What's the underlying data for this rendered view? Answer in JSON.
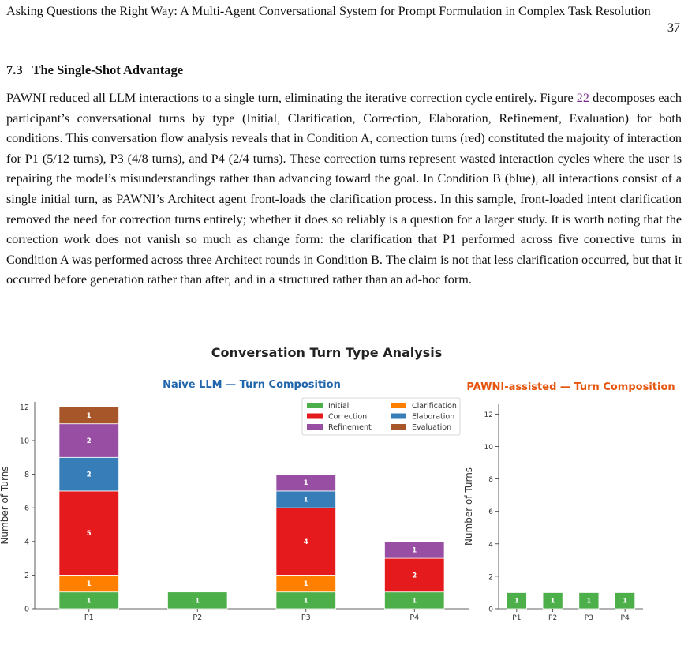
{
  "header": {
    "title": "Asking Questions the Right Way: A Multi-Agent Conversational System for Prompt Formulation in Complex Task Resolution",
    "page_number": "37"
  },
  "section": {
    "number": "7.3",
    "title": "The Single-Shot Advantage"
  },
  "paragraph": {
    "part1": "PAWNI reduced all LLM interactions to a single turn, eliminating the iterative correction cycle entirely. Figure ",
    "figure_ref": "22",
    "part2": " decomposes each participant’s conversational turns by type (Initial, Clarification, Correction, Elaboration, Refinement, Evaluation) for both conditions. This conversation flow analysis reveals that in Condition A, correction turns (red) constituted the majority of interaction for P1 (5/12 turns), P3 (4/8 turns), and P4 (2/4 turns). These correction turns represent wasted interaction cycles where the user is repairing the model’s misunderstandings rather than advancing toward the goal. In Condition B (blue), all interactions consist of a single initial turn, as PAWNI’s Architect agent front-loads the clarification process. In this sample, front-loaded intent clarification removed the need for correction turns entirely; whether it does so reliably is a question for a larger study. It is worth noting that the correction work does not vanish so much as change form: the clarification that P1 performed across five corrective turns in Condition A was performed across three Architect rounds in Condition B. The claim is not that less clarification occurred, but that it occurred before generation rather than after, and in a structured rather than an ad-hoc form."
  },
  "figure": {
    "suptitle": "Conversation Turn Type Analysis"
  },
  "colors": {
    "Initial": "#4daf4a",
    "Clarification": "#ff7f00",
    "Correction": "#e41a1c",
    "Elaboration": "#377eb8",
    "Refinement": "#984ea3",
    "Evaluation": "#a65628",
    "title_left": "#2166ac",
    "title_right": "#e6550d"
  },
  "chart_data": [
    {
      "type": "bar",
      "stacked": true,
      "title": "Naive LLM — Turn Composition",
      "ylabel": "Number of Turns",
      "xlabel": "",
      "categories": [
        "P1",
        "P2",
        "P3",
        "P4"
      ],
      "ylim": [
        0,
        12.3
      ],
      "yticks": [
        0,
        2,
        4,
        6,
        8,
        10,
        12
      ],
      "legend": "upper-right",
      "series": [
        {
          "name": "Initial",
          "values": [
            1,
            1,
            1,
            1
          ]
        },
        {
          "name": "Clarification",
          "values": [
            1,
            0,
            1,
            0
          ]
        },
        {
          "name": "Correction",
          "values": [
            5,
            0,
            4,
            2
          ]
        },
        {
          "name": "Elaboration",
          "values": [
            2,
            0,
            1,
            0
          ]
        },
        {
          "name": "Refinement",
          "values": [
            2,
            0,
            1,
            1
          ]
        },
        {
          "name": "Evaluation",
          "values": [
            1,
            0,
            0,
            0
          ]
        }
      ]
    },
    {
      "type": "bar",
      "stacked": true,
      "title": "PAWNI-assisted — Turn Composition",
      "ylabel": "Number of Turns",
      "xlabel": "",
      "categories": [
        "P1",
        "P2",
        "P3",
        "P4"
      ],
      "ylim": [
        0,
        12.6
      ],
      "yticks": [
        0,
        2,
        4,
        6,
        8,
        10,
        12
      ],
      "series": [
        {
          "name": "Initial",
          "values": [
            1,
            1,
            1,
            1
          ]
        }
      ]
    }
  ]
}
